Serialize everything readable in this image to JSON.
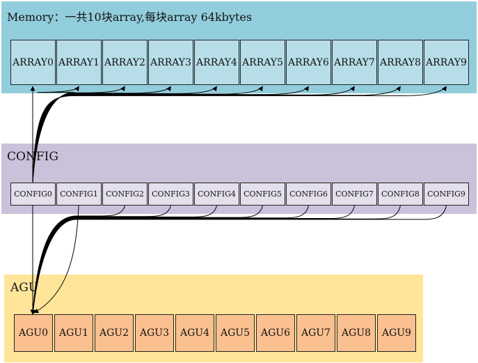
{
  "memory": {
    "title": "Memory：一共10块array,每块array 64kbytes",
    "arrays": [
      "ARRAY0",
      "ARRAY1",
      "ARRAY2",
      "ARRAY3",
      "ARRAY4",
      "ARRAY5",
      "ARRAY6",
      "ARRAY7",
      "ARRAY8",
      "ARRAY9"
    ]
  },
  "config": {
    "title": "CONFIG",
    "items": [
      "CONFIG0",
      "CONFIG1",
      "CONFIG2",
      "CONFIG3",
      "CONFIG4",
      "CONFIG5",
      "CONFIG6",
      "CONFIG7",
      "CONFIG8",
      "CONFIG9"
    ]
  },
  "agu": {
    "title": "AGU",
    "items": [
      "AGU0",
      "AGU1",
      "AGU2",
      "AGU3",
      "AGU4",
      "AGU5",
      "AGU6",
      "AGU7",
      "AGU8",
      "AGU9"
    ]
  },
  "colors": {
    "memory_band": "#92cddc",
    "array_box": "#b7dee8",
    "config_band": "#ccc1da",
    "config_box": "#e4dfec",
    "agu_band": "#ffe599",
    "agu_box": "#fac090",
    "line": "#000000"
  }
}
